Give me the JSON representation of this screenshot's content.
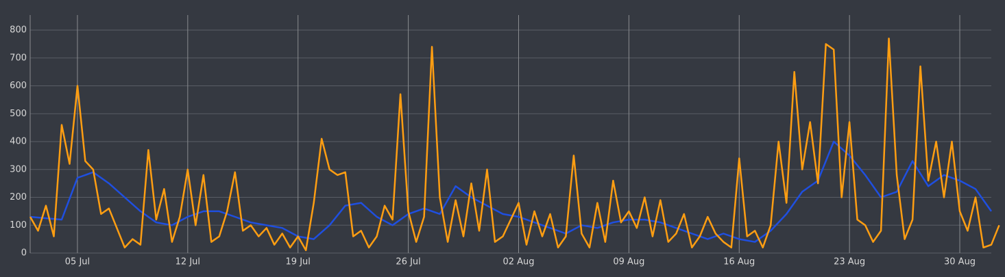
{
  "chart_data": {
    "type": "line",
    "xlim": [
      0,
      61
    ],
    "ylim": [
      0,
      800
    ],
    "yticks": [
      0,
      100,
      200,
      300,
      400,
      500,
      600,
      700,
      800
    ],
    "xticks": [
      {
        "value": 3,
        "label": "05 Jul"
      },
      {
        "value": 10,
        "label": "12 Jul"
      },
      {
        "value": 17,
        "label": "19 Jul"
      },
      {
        "value": 24,
        "label": "26 Jul"
      },
      {
        "value": 31,
        "label": "02 Aug"
      },
      {
        "value": 38,
        "label": "09 Aug"
      },
      {
        "value": 45,
        "label": "16 Aug"
      },
      {
        "value": 52,
        "label": "23 Aug"
      },
      {
        "value": 59,
        "label": "30 Aug"
      }
    ],
    "grid": true,
    "series": [
      {
        "color": "#1f4fe0",
        "x": [
          0,
          1,
          2,
          3,
          4,
          5,
          6,
          7,
          8,
          9,
          10,
          11,
          12,
          13,
          14,
          15,
          16,
          17,
          18,
          19,
          20,
          21,
          22,
          23,
          24,
          25,
          26,
          27,
          28,
          29,
          30,
          31,
          32,
          33,
          34,
          35,
          36,
          37,
          38,
          39,
          40,
          41,
          42,
          43,
          44,
          45,
          46,
          47,
          48,
          49,
          50,
          51,
          52,
          53,
          54,
          55,
          56,
          57,
          58,
          59,
          60,
          61
        ],
        "values": [
          130,
          125,
          120,
          270,
          290,
          250,
          200,
          150,
          110,
          100,
          130,
          150,
          150,
          130,
          110,
          100,
          90,
          60,
          50,
          100,
          170,
          180,
          130,
          100,
          140,
          160,
          140,
          240,
          200,
          170,
          140,
          130,
          110,
          90,
          70,
          100,
          90,
          110,
          120,
          120,
          110,
          90,
          70,
          50,
          70,
          50,
          40,
          80,
          140,
          220,
          260,
          400,
          350,
          280,
          200,
          220,
          330,
          240,
          280,
          260,
          230,
          150
        ]
      },
      {
        "color": "#ff9e12",
        "x": [
          0,
          0.5,
          1,
          1.5,
          2,
          2.5,
          3,
          3.5,
          4,
          4.5,
          5,
          5.5,
          6,
          6.5,
          7,
          7.5,
          8,
          8.5,
          9,
          9.5,
          10,
          10.5,
          11,
          11.5,
          12,
          12.5,
          13,
          13.5,
          14,
          14.5,
          15,
          15.5,
          16,
          16.5,
          17,
          17.5,
          18,
          18.5,
          19,
          19.5,
          20,
          20.5,
          21,
          21.5,
          22,
          22.5,
          23,
          23.5,
          24,
          24.5,
          25,
          25.5,
          26,
          26.5,
          27,
          27.5,
          28,
          28.5,
          29,
          29.5,
          30,
          30.5,
          31,
          31.5,
          32,
          32.5,
          33,
          33.5,
          34,
          34.5,
          35,
          35.5,
          36,
          36.5,
          37,
          37.5,
          38,
          38.5,
          39,
          39.5,
          40,
          40.5,
          41,
          41.5,
          42,
          42.5,
          43,
          43.5,
          44,
          44.5,
          45,
          45.5,
          46,
          46.5,
          47,
          47.5,
          48,
          48.5,
          49,
          49.5,
          50,
          50.5,
          51,
          51.5,
          52,
          52.5,
          53,
          53.5,
          54,
          54.5,
          55,
          55.5,
          56,
          56.5,
          57,
          57.5,
          58,
          58.5,
          59,
          59.5,
          60,
          60.5,
          61,
          61.5
        ],
        "values": [
          130,
          80,
          170,
          60,
          460,
          320,
          600,
          330,
          300,
          140,
          160,
          90,
          20,
          50,
          30,
          370,
          120,
          230,
          40,
          130,
          300,
          100,
          280,
          40,
          60,
          150,
          290,
          80,
          100,
          60,
          90,
          30,
          70,
          20,
          60,
          10,
          180,
          410,
          300,
          280,
          290,
          60,
          80,
          20,
          60,
          170,
          120,
          570,
          150,
          40,
          130,
          740,
          200,
          40,
          190,
          60,
          250,
          80,
          300,
          40,
          60,
          120,
          180,
          30,
          150,
          60,
          140,
          20,
          60,
          350,
          70,
          20,
          180,
          40,
          260,
          110,
          150,
          90,
          200,
          60,
          190,
          40,
          70,
          140,
          20,
          60,
          130,
          70,
          40,
          20,
          340,
          60,
          80,
          20,
          100,
          400,
          180,
          650,
          300,
          470,
          250,
          750,
          730,
          200,
          470,
          120,
          100,
          40,
          80,
          770,
          280,
          50,
          120,
          670,
          260,
          400,
          200,
          400,
          150,
          80,
          200,
          20,
          30,
          100
        ]
      }
    ]
  }
}
